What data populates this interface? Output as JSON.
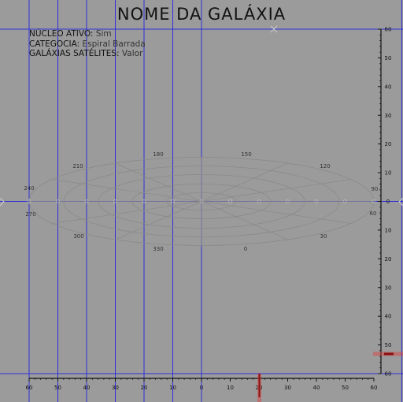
{
  "title": "NOME DA GALÁXIA",
  "info": {
    "rows": [
      {
        "label": "NÚCLEO ATIVO:",
        "value": "Sim"
      },
      {
        "label": "CATEGOCIA:",
        "value": "Espiral Barrada"
      },
      {
        "label": "GALÁXIAS SATÉLITES:",
        "value": "Valor"
      }
    ]
  },
  "colors": {
    "background": "#9b9b9b",
    "grid_line": "#2f2fd8",
    "ellipse": "#8a8a8a",
    "axis": "#111111",
    "marker": "#e23a3a",
    "text": "#111111"
  },
  "axes": {
    "bottom_ticks": [
      "60",
      "50",
      "40",
      "30",
      "20",
      "10",
      "0",
      "10",
      "20",
      "30",
      "40",
      "50",
      "60"
    ],
    "right_ticks": [
      "60",
      "50",
      "40",
      "30",
      "20",
      "10",
      "0",
      "10",
      "20",
      "30",
      "40",
      "50",
      "60"
    ]
  },
  "polar": {
    "angle_labels": [
      "0",
      "30",
      "60",
      "90",
      "120",
      "150",
      "180",
      "210",
      "240",
      "270",
      "300",
      "330"
    ]
  },
  "markers": {
    "bottom_value": 20,
    "right_value": 53
  },
  "icons": [
    "crosshair-icon"
  ]
}
